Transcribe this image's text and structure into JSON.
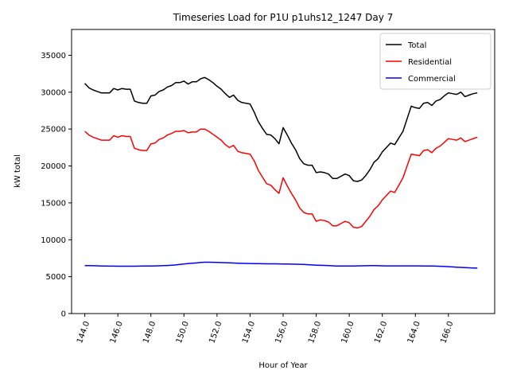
{
  "chart_data": {
    "type": "line",
    "title": "Timeseries Load for P1U p1uhs12_1247  Day 7",
    "xlabel": "Hour of Year",
    "ylabel": "kW total",
    "xlim": [
      143.2,
      168.8
    ],
    "ylim": [
      0,
      38500
    ],
    "xticks": [
      144,
      146,
      148,
      150,
      152,
      154,
      156,
      158,
      160,
      162,
      164,
      166
    ],
    "xtick_labels": [
      "144.0",
      "146.0",
      "148.0",
      "150.0",
      "152.0",
      "154.0",
      "156.0",
      "158.0",
      "160.0",
      "162.0",
      "164.0",
      "166.0"
    ],
    "yticks": [
      0,
      5000,
      10000,
      15000,
      20000,
      25000,
      30000,
      35000
    ],
    "ytick_labels": [
      "0",
      "5000",
      "10000",
      "15000",
      "20000",
      "25000",
      "30000",
      "35000"
    ],
    "legend_position": "top-right",
    "x": [
      144.0,
      144.25,
      144.5,
      144.75,
      145.0,
      145.25,
      145.5,
      145.75,
      146.0,
      146.25,
      146.5,
      146.75,
      147.0,
      147.25,
      147.5,
      147.75,
      148.0,
      148.25,
      148.5,
      148.75,
      149.0,
      149.25,
      149.5,
      149.75,
      150.0,
      150.25,
      150.5,
      150.75,
      151.0,
      151.25,
      151.5,
      151.75,
      152.0,
      152.25,
      152.5,
      152.75,
      153.0,
      153.25,
      153.5,
      153.75,
      154.0,
      154.25,
      154.5,
      154.75,
      155.0,
      155.25,
      155.5,
      155.75,
      156.0,
      156.25,
      156.5,
      156.75,
      157.0,
      157.25,
      157.5,
      157.75,
      158.0,
      158.25,
      158.5,
      158.75,
      159.0,
      159.25,
      159.5,
      159.75,
      160.0,
      160.25,
      160.5,
      160.75,
      161.0,
      161.25,
      161.5,
      161.75,
      162.0,
      162.25,
      162.5,
      162.75,
      163.0,
      163.25,
      163.5,
      163.75,
      164.0,
      164.25,
      164.5,
      164.75,
      165.0,
      165.25,
      165.5,
      165.75,
      166.0,
      166.25,
      166.5,
      166.75,
      167.0,
      167.25,
      167.5,
      167.75
    ],
    "series": [
      {
        "name": "Total",
        "color": "#000000",
        "values": [
          31200,
          30600,
          30300,
          30100,
          29900,
          29900,
          29900,
          30500,
          30300,
          30500,
          30400,
          30400,
          28800,
          28600,
          28500,
          28500,
          29500,
          29600,
          30100,
          30300,
          30700,
          30900,
          31300,
          31300,
          31500,
          31100,
          31400,
          31400,
          31800,
          32000,
          31700,
          31300,
          30800,
          30400,
          29800,
          29300,
          29600,
          28900,
          28600,
          28500,
          28400,
          27300,
          26000,
          25100,
          24300,
          24200,
          23700,
          23000,
          25200,
          24200,
          23100,
          22200,
          21000,
          20300,
          20100,
          20100,
          19100,
          19200,
          19100,
          18900,
          18300,
          18300,
          18600,
          18900,
          18700,
          18000,
          17900,
          18100,
          18700,
          19500,
          20500,
          21000,
          21900,
          22500,
          23100,
          22900,
          23800,
          24700,
          26400,
          28100,
          27900,
          27800,
          28500,
          28600,
          28200,
          28800,
          29000,
          29500,
          29900,
          29800,
          29700,
          30000,
          29400,
          29600,
          29800,
          29900
        ]
      },
      {
        "name": "Residential",
        "color": "#ff0000",
        "values": [
          24700,
          24200,
          23900,
          23700,
          23500,
          23500,
          23500,
          24100,
          23900,
          24100,
          24000,
          24000,
          22400,
          22200,
          22100,
          22100,
          23000,
          23100,
          23600,
          23800,
          24200,
          24400,
          24700,
          24700,
          24800,
          24500,
          24600,
          24600,
          25000,
          25000,
          24700,
          24300,
          23900,
          23500,
          22900,
          22500,
          22800,
          22000,
          21800,
          21700,
          21600,
          20700,
          19400,
          18500,
          17600,
          17400,
          16800,
          16300,
          18400,
          17300,
          16300,
          15400,
          14300,
          13700,
          13500,
          13500,
          12500,
          12700,
          12600,
          12400,
          11900,
          11900,
          12200,
          12500,
          12300,
          11700,
          11600,
          11800,
          12500,
          13200,
          14100,
          14600,
          15400,
          16000,
          16600,
          16400,
          17400,
          18400,
          20000,
          21600,
          21500,
          21400,
          22100,
          22200,
          21800,
          22400,
          22700,
          23200,
          23700,
          23600,
          23500,
          23800,
          23300,
          23500,
          23700,
          23900
        ]
      },
      {
        "name": "Commercial",
        "color": "#0000ff",
        "values": [
          6500,
          6490,
          6480,
          6470,
          6450,
          6440,
          6430,
          6430,
          6420,
          6420,
          6420,
          6420,
          6420,
          6430,
          6440,
          6450,
          6450,
          6460,
          6470,
          6490,
          6510,
          6550,
          6590,
          6650,
          6710,
          6780,
          6830,
          6860,
          6920,
          6960,
          6960,
          6950,
          6930,
          6910,
          6890,
          6870,
          6850,
          6830,
          6810,
          6790,
          6780,
          6770,
          6760,
          6750,
          6740,
          6740,
          6740,
          6730,
          6720,
          6710,
          6700,
          6690,
          6680,
          6650,
          6620,
          6590,
          6560,
          6540,
          6520,
          6500,
          6470,
          6450,
          6440,
          6440,
          6440,
          6450,
          6460,
          6470,
          6480,
          6490,
          6490,
          6480,
          6470,
          6460,
          6460,
          6460,
          6460,
          6460,
          6460,
          6460,
          6460,
          6460,
          6450,
          6450,
          6440,
          6430,
          6410,
          6380,
          6350,
          6320,
          6290,
          6250,
          6220,
          6200,
          6180,
          6160
        ]
      }
    ]
  }
}
